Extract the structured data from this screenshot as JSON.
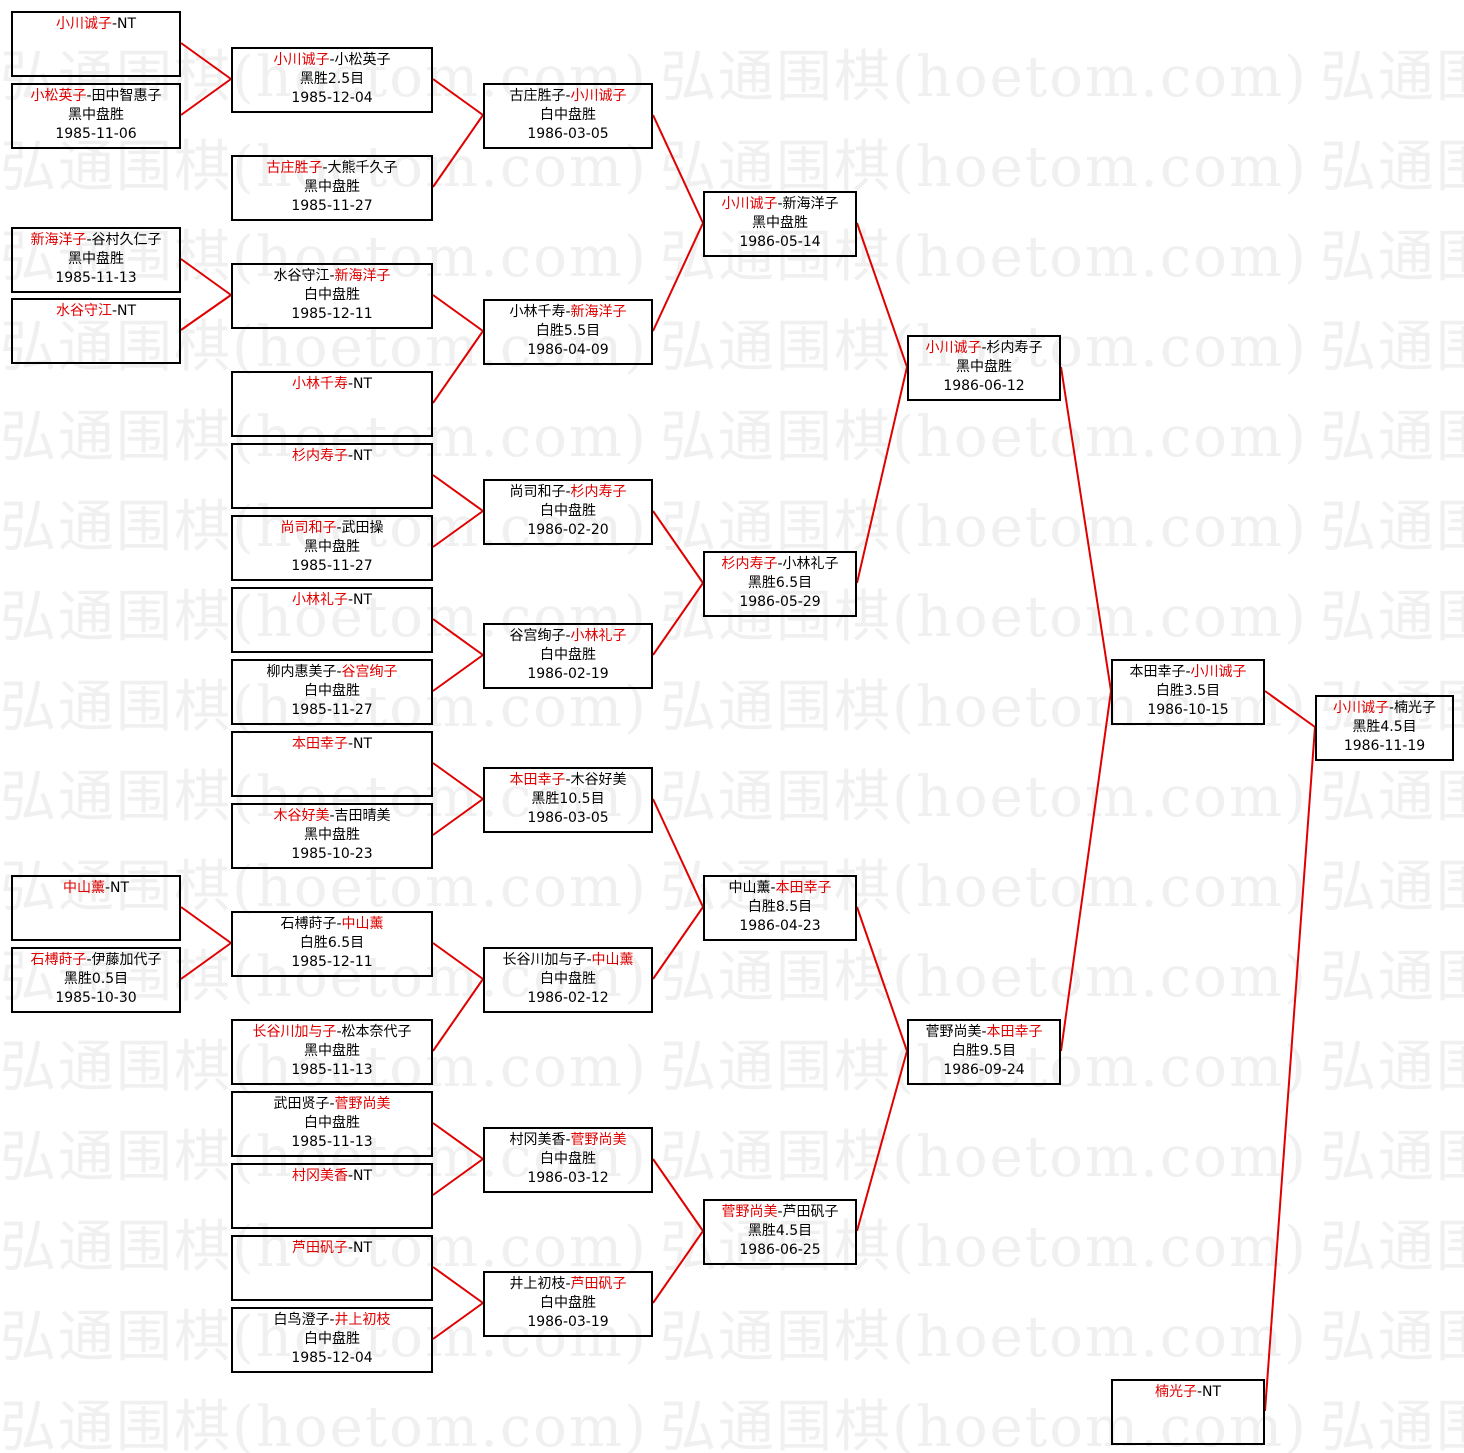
{
  "watermark": "弘通围棋(hoetom.com)",
  "colors": {
    "winner": "#e00000",
    "connector": "#e00000",
    "border": "#000000",
    "watermark": "#f0f0f0"
  },
  "rounds": [
    {
      "matches": [
        {
          "p1": "小川诚子",
          "p2": "NT",
          "winner": 1,
          "result": "",
          "date": ""
        },
        {
          "p1": "小松英子",
          "p2": "田中智惠子",
          "winner": 1,
          "result": "黑中盘胜",
          "date": "1985-11-06"
        },
        {
          "p1": "新海洋子",
          "p2": "谷村久仁子",
          "winner": 1,
          "result": "黑中盘胜",
          "date": "1985-11-13"
        },
        {
          "p1": "水谷守江",
          "p2": "NT",
          "winner": 1,
          "result": "",
          "date": ""
        },
        {
          "p1": "中山薰",
          "p2": "NT",
          "winner": 1,
          "result": "",
          "date": ""
        },
        {
          "p1": "石榑莳子",
          "p2": "伊藤加代子",
          "winner": 1,
          "result": "黑胜0.5目",
          "date": "1985-10-30"
        }
      ]
    },
    {
      "matches": [
        {
          "p1": "小川诚子",
          "p2": "小松英子",
          "winner": 1,
          "result": "黑胜2.5目",
          "date": "1985-12-04"
        },
        {
          "p1": "古庄胜子",
          "p2": "大熊千久子",
          "winner": 1,
          "result": "黑中盘胜",
          "date": "1985-11-27"
        },
        {
          "p1": "水谷守江",
          "p2": "新海洋子",
          "winner": 2,
          "result": "白中盘胜",
          "date": "1985-12-11"
        },
        {
          "p1": "小林千寿",
          "p2": "NT",
          "winner": 1,
          "result": "",
          "date": ""
        },
        {
          "p1": "杉内寿子",
          "p2": "NT",
          "winner": 1,
          "result": "",
          "date": ""
        },
        {
          "p1": "尚司和子",
          "p2": "武田操",
          "winner": 1,
          "result": "黑中盘胜",
          "date": "1985-11-27"
        },
        {
          "p1": "小林礼子",
          "p2": "NT",
          "winner": 1,
          "result": "",
          "date": ""
        },
        {
          "p1": "柳内惠美子",
          "p2": "谷宫绚子",
          "winner": 2,
          "result": "白中盘胜",
          "date": "1985-11-27"
        },
        {
          "p1": "本田幸子",
          "p2": "NT",
          "winner": 1,
          "result": "",
          "date": ""
        },
        {
          "p1": "木谷好美",
          "p2": "吉田晴美",
          "winner": 1,
          "result": "黑中盘胜",
          "date": "1985-10-23"
        },
        {
          "p1": "石榑莳子",
          "p2": "中山薰",
          "winner": 2,
          "result": "白胜6.5目",
          "date": "1985-12-11"
        },
        {
          "p1": "长谷川加与子",
          "p2": "松本奈代子",
          "winner": 1,
          "result": "黑中盘胜",
          "date": "1985-11-13"
        },
        {
          "p1": "武田贤子",
          "p2": "菅野尚美",
          "winner": 2,
          "result": "白中盘胜",
          "date": "1985-11-13"
        },
        {
          "p1": "村冈美香",
          "p2": "NT",
          "winner": 1,
          "result": "",
          "date": ""
        },
        {
          "p1": "芦田矾子",
          "p2": "NT",
          "winner": 1,
          "result": "",
          "date": ""
        },
        {
          "p1": "白鸟澄子",
          "p2": "井上初枝",
          "winner": 2,
          "result": "白中盘胜",
          "date": "1985-12-04"
        }
      ]
    },
    {
      "matches": [
        {
          "p1": "古庄胜子",
          "p2": "小川诚子",
          "winner": 2,
          "result": "白中盘胜",
          "date": "1986-03-05"
        },
        {
          "p1": "小林千寿",
          "p2": "新海洋子",
          "winner": 2,
          "result": "白胜5.5目",
          "date": "1986-04-09"
        },
        {
          "p1": "尚司和子",
          "p2": "杉内寿子",
          "winner": 2,
          "result": "白中盘胜",
          "date": "1986-02-20"
        },
        {
          "p1": "谷宫绚子",
          "p2": "小林礼子",
          "winner": 2,
          "result": "白中盘胜",
          "date": "1986-02-19"
        },
        {
          "p1": "本田幸子",
          "p2": "木谷好美",
          "winner": 1,
          "result": "黑胜10.5目",
          "date": "1986-03-05"
        },
        {
          "p1": "长谷川加与子",
          "p2": "中山薰",
          "winner": 2,
          "result": "白中盘胜",
          "date": "1986-02-12"
        },
        {
          "p1": "村冈美香",
          "p2": "菅野尚美",
          "winner": 2,
          "result": "白中盘胜",
          "date": "1986-03-12"
        },
        {
          "p1": "井上初枝",
          "p2": "芦田矾子",
          "winner": 2,
          "result": "白中盘胜",
          "date": "1986-03-19"
        }
      ]
    },
    {
      "matches": [
        {
          "p1": "小川诚子",
          "p2": "新海洋子",
          "winner": 1,
          "result": "黑中盘胜",
          "date": "1986-05-14"
        },
        {
          "p1": "杉内寿子",
          "p2": "小林礼子",
          "winner": 1,
          "result": "黑胜6.5目",
          "date": "1986-05-29"
        },
        {
          "p1": "中山薰",
          "p2": "本田幸子",
          "winner": 2,
          "result": "白胜8.5目",
          "date": "1986-04-23"
        },
        {
          "p1": "菅野尚美",
          "p2": "芦田矾子",
          "winner": 1,
          "result": "黑胜4.5目",
          "date": "1986-06-25"
        }
      ]
    },
    {
      "matches": [
        {
          "p1": "小川诚子",
          "p2": "杉内寿子",
          "winner": 1,
          "result": "黑中盘胜",
          "date": "1986-06-12"
        },
        {
          "p1": "菅野尚美",
          "p2": "本田幸子",
          "winner": 2,
          "result": "白胜9.5目",
          "date": "1986-09-24"
        }
      ]
    },
    {
      "matches": [
        {
          "p1": "本田幸子",
          "p2": "小川诚子",
          "winner": 2,
          "result": "白胜3.5目",
          "date": "1986-10-15"
        },
        {
          "p1": "楠光子",
          "p2": "NT",
          "winner": 1,
          "result": "",
          "date": ""
        }
      ]
    },
    {
      "matches": [
        {
          "p1": "小川诚子",
          "p2": "楠光子",
          "winner": 1,
          "result": "黑胜4.5目",
          "date": "1986-11-19"
        }
      ]
    }
  ]
}
